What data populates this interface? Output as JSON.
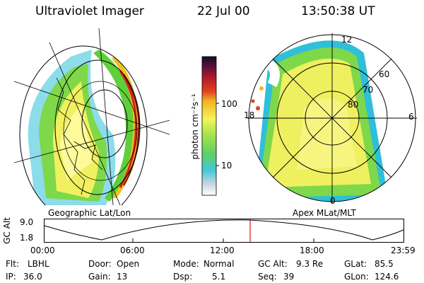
{
  "header": {
    "title": "Ultraviolet Imager",
    "date": "22 Jul 00",
    "time": "13:50:38 UT"
  },
  "colorbar": {
    "unit_label": "photon cm⁻²s⁻¹",
    "ticks": [
      "100",
      "10"
    ]
  },
  "left_map": {
    "label": "Geographic Lat/Lon"
  },
  "right_map": {
    "label": "Apex MLat/MLT",
    "mlt_labels": {
      "top": "12",
      "right": "6",
      "bottom": "0",
      "left": "18"
    },
    "lat_labels": [
      "60",
      "70",
      "80"
    ]
  },
  "altitude_plot": {
    "ylabel": "GC Alt",
    "y_ticks": [
      "9.0",
      "1.8"
    ],
    "x_ticks": [
      "00:00",
      "06:00",
      "12:00",
      "18:00",
      "23:59"
    ]
  },
  "info": {
    "filter_label": "Flt:",
    "filter_value": "LBHL",
    "door_label": "Door:",
    "door_value": "Open",
    "mode_label": "Mode:",
    "mode_value": "Normal",
    "gcalt_label": "GC Alt:",
    "gcalt_value": "9.3 Re",
    "glat_label": "GLat:",
    "glat_value": "85.5",
    "ip_label": "IP:",
    "ip_value": "36.0",
    "gain_label": "Gain:",
    "gain_value": "13",
    "dsp_label": "Dsp:",
    "dsp_value": "5.1",
    "seq_label": "Seq:",
    "seq_value": "39",
    "glon_label": "GLon:",
    "glon_value": "124.6"
  }
}
